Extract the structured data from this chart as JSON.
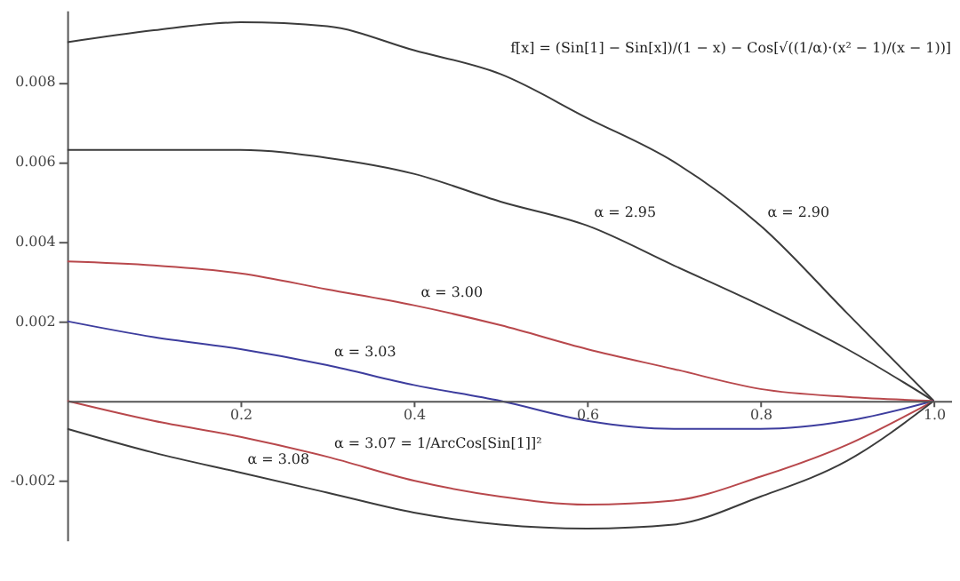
{
  "chart_data": {
    "type": "line",
    "x": [
      0,
      0.1,
      0.2,
      0.3,
      0.4,
      0.5,
      0.6,
      0.7,
      0.8,
      0.9,
      1.0
    ],
    "series": [
      {
        "color": "#3c3c3c",
        "values": [
          0.009,
          0.0093,
          0.0095,
          0.0094,
          0.0088,
          0.0082,
          0.0071,
          0.006,
          0.0044,
          0.0022,
          0
        ]
      },
      {
        "color": "#3c3c3c",
        "values": [
          0.0063,
          0.0063,
          0.0063,
          0.0061,
          0.0057,
          0.005,
          0.0044,
          0.0034,
          0.0024,
          0.0013,
          0
        ]
      },
      {
        "color": "#b8484c",
        "values": [
          0.0035,
          0.0034,
          0.0032,
          0.0028,
          0.0024,
          0.0019,
          0.0013,
          0.0008,
          0.0003,
          0.0001,
          0
        ]
      },
      {
        "color": "#3d3d9e",
        "values": [
          0.002,
          0.0016,
          0.0013,
          0.0009,
          0.0004,
          0.0,
          -0.0005,
          -0.0007,
          -0.0007,
          -0.0005,
          0
        ]
      },
      {
        "color": "#b8484c",
        "values": [
          0,
          -0.0005,
          -0.0009,
          -0.0014,
          -0.002,
          -0.0024,
          -0.0026,
          -0.0025,
          -0.0019,
          -0.0011,
          0
        ]
      },
      {
        "color": "#3c3c3c",
        "values": [
          -0.0007,
          -0.0013,
          -0.0018,
          -0.0023,
          -0.0028,
          -0.0031,
          -0.0032,
          -0.0031,
          -0.0024,
          -0.0015,
          0
        ]
      }
    ],
    "xlim": [
      0,
      1.02
    ],
    "ylim": [
      -0.0035,
      0.0098
    ],
    "xticks": [
      0.2,
      0.4,
      0.6,
      0.8,
      {
        "value": 1.0,
        "label": "1.0"
      }
    ],
    "yticks": [
      -0.002,
      0.002,
      0.004,
      0.006,
      0.008
    ],
    "grid": false,
    "marker": "none",
    "line_style": "solid",
    "annotations": [
      {
        "text": "α = 2.90",
        "x": 0.8,
        "y": 0.0044
      },
      {
        "text": "α = 2.95",
        "x": 0.6,
        "y": 0.0044
      },
      {
        "text": "α = 3.00",
        "x": 0.4,
        "y": 0.0024
      },
      {
        "text": "α = 3.03",
        "x": 0.3,
        "y": 0.0009
      },
      {
        "text": "α = 3.07 = 1/ArcCos[Sin[1]]²",
        "x": 0.3,
        "y": -0.0014
      },
      {
        "text": "α = 3.08",
        "x": 0.2,
        "y": -0.0018
      },
      "f[x] = (Sin[1] − Sin[x])/(1 − x) − Cos[√((1/α)·(x² − 1)/(x − 1))]"
    ]
  }
}
